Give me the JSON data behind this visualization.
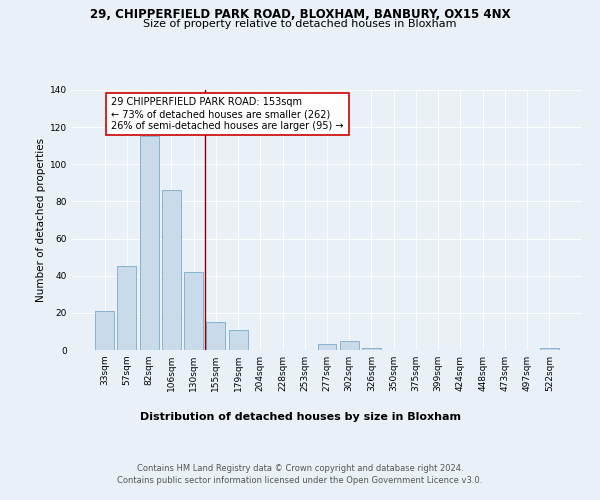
{
  "title_line1": "29, CHIPPERFIELD PARK ROAD, BLOXHAM, BANBURY, OX15 4NX",
  "title_line2": "Size of property relative to detached houses in Bloxham",
  "xlabel": "Distribution of detached houses by size in Bloxham",
  "ylabel": "Number of detached properties",
  "categories": [
    "33sqm",
    "57sqm",
    "82sqm",
    "106sqm",
    "130sqm",
    "155sqm",
    "179sqm",
    "204sqm",
    "228sqm",
    "253sqm",
    "277sqm",
    "302sqm",
    "326sqm",
    "350sqm",
    "375sqm",
    "399sqm",
    "424sqm",
    "448sqm",
    "473sqm",
    "497sqm",
    "522sqm"
  ],
  "values": [
    21,
    45,
    115,
    86,
    42,
    15,
    11,
    0,
    0,
    0,
    3,
    5,
    1,
    0,
    0,
    0,
    0,
    0,
    0,
    0,
    1
  ],
  "bar_color": "#c9daea",
  "bar_edge_color": "#7aaac8",
  "marker_color": "#8b0000",
  "annotation_text": "29 CHIPPERFIELD PARK ROAD: 153sqm\n← 73% of detached houses are smaller (262)\n26% of semi-detached houses are larger (95) →",
  "annotation_box_color": "#ffffff",
  "annotation_box_edge_color": "#cc0000",
  "ylim": [
    0,
    140
  ],
  "yticks": [
    0,
    20,
    40,
    60,
    80,
    100,
    120,
    140
  ],
  "footnote1": "Contains HM Land Registry data © Crown copyright and database right 2024.",
  "footnote2": "Contains public sector information licensed under the Open Government Licence v3.0.",
  "bg_color": "#eaf0f7",
  "plot_bg_color": "#eaf0f7",
  "title_fontsize": 8.5,
  "subtitle_fontsize": 8.0,
  "ylabel_fontsize": 7.5,
  "xlabel_fontsize": 8.0,
  "tick_fontsize": 6.5,
  "annotation_fontsize": 7.0,
  "footnote_fontsize": 6.0
}
